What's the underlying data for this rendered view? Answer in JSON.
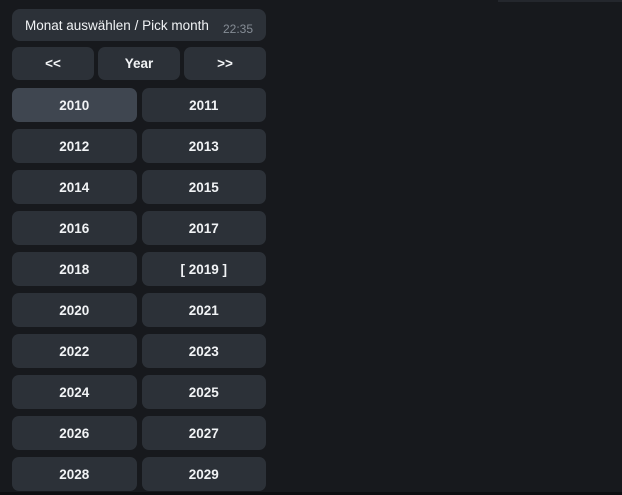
{
  "message": {
    "text": "Monat auswählen / Pick month",
    "time": "22:35"
  },
  "keyboard": {
    "nav": [
      {
        "label": "<<"
      },
      {
        "label": "Year"
      },
      {
        "label": ">>"
      }
    ],
    "years": [
      {
        "value": "2010",
        "label": "2010",
        "highlighted": true
      },
      {
        "value": "2011",
        "label": "2011"
      },
      {
        "value": "2012",
        "label": "2012"
      },
      {
        "value": "2013",
        "label": "2013"
      },
      {
        "value": "2014",
        "label": "2014"
      },
      {
        "value": "2015",
        "label": "2015"
      },
      {
        "value": "2016",
        "label": "2016"
      },
      {
        "value": "2017",
        "label": "2017"
      },
      {
        "value": "2018",
        "label": "2018"
      },
      {
        "value": "2019",
        "label": "[ 2019 ]",
        "selected": true
      },
      {
        "value": "2020",
        "label": "2020"
      },
      {
        "value": "2021",
        "label": "2021"
      },
      {
        "value": "2022",
        "label": "2022"
      },
      {
        "value": "2023",
        "label": "2023"
      },
      {
        "value": "2024",
        "label": "2024"
      },
      {
        "value": "2025",
        "label": "2025"
      },
      {
        "value": "2026",
        "label": "2026"
      },
      {
        "value": "2027",
        "label": "2027"
      },
      {
        "value": "2028",
        "label": "2028"
      },
      {
        "value": "2029",
        "label": "2029"
      }
    ]
  },
  "colors": {
    "background": "#17191d",
    "bubble": "#2c3138",
    "button": "#2c3138",
    "button_highlight": "#3f4650",
    "text": "#f1f3f5",
    "timestamp": "#858c95",
    "bottom_edge": "#0d0e11",
    "top_edge": "#24272d"
  }
}
